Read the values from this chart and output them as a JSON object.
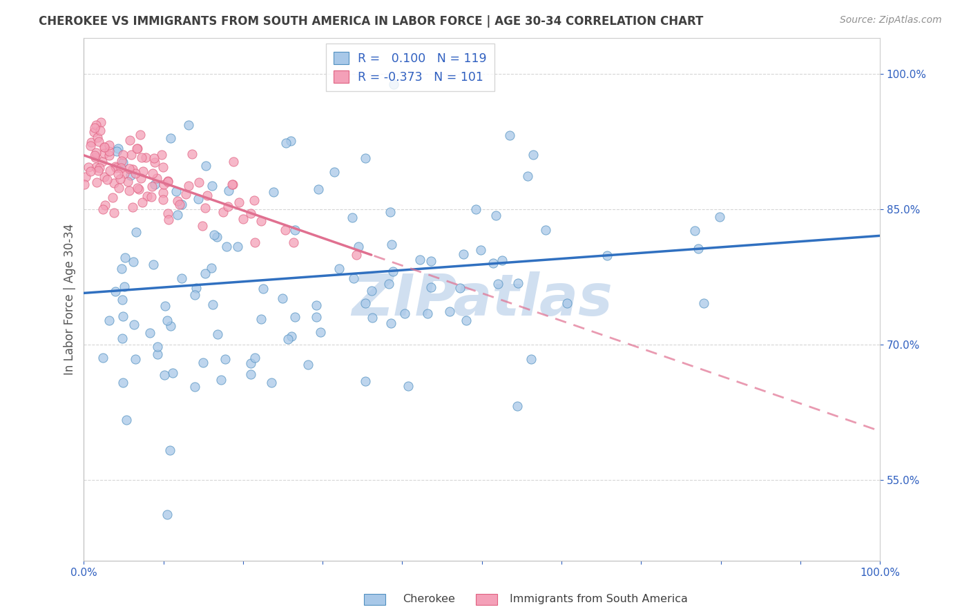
{
  "title": "CHEROKEE VS IMMIGRANTS FROM SOUTH AMERICA IN LABOR FORCE | AGE 30-34 CORRELATION CHART",
  "source": "Source: ZipAtlas.com",
  "ylabel": "In Labor Force | Age 30-34",
  "xlim": [
    0.0,
    1.0
  ],
  "ylim": [
    0.46,
    1.04
  ],
  "yticks": [
    0.55,
    0.7,
    0.85,
    1.0
  ],
  "ytick_labels": [
    "55.0%",
    "70.0%",
    "85.0%",
    "100.0%"
  ],
  "xtick_labels": [
    "0.0%",
    "",
    "",
    "",
    "",
    "",
    "",
    "",
    "",
    "",
    "100.0%"
  ],
  "legend_label1": "Cherokee",
  "legend_label2": "Immigrants from South America",
  "R1": 0.1,
  "N1": 119,
  "R2": -0.373,
  "N2": 101,
  "color_blue": "#a8c8e8",
  "color_pink": "#f4a0b8",
  "color_blue_edge": "#5090c0",
  "color_pink_edge": "#e06080",
  "color_blue_line": "#3070c0",
  "color_pink_line": "#e07090",
  "color_text_blue": "#3060c0",
  "color_text_dark": "#404040",
  "color_source": "#909090",
  "background": "#ffffff",
  "grid_color": "#cccccc",
  "watermark_color": "#d0dff0"
}
